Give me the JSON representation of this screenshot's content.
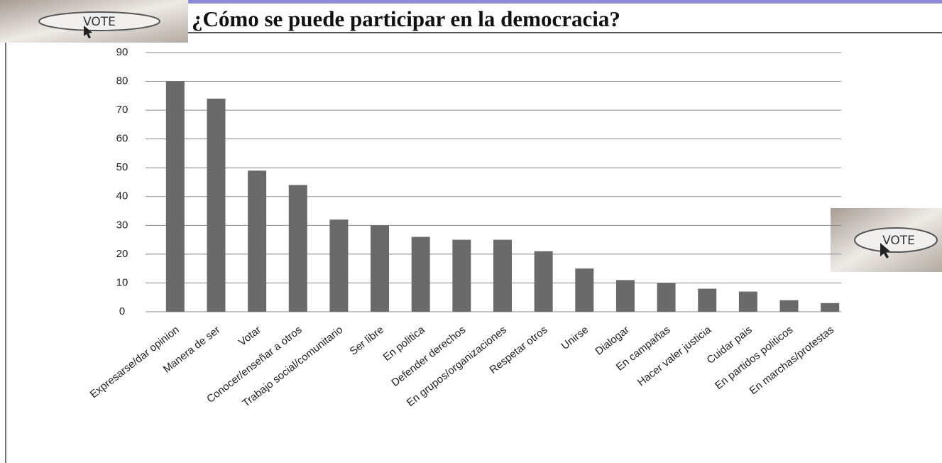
{
  "chart_data": {
    "type": "bar",
    "title": "¿Cómo se puede participar en la democracia?",
    "categories": [
      "Expresarse/dar opinion",
      "Manera de ser",
      "Votar",
      "Conocer/enseñar a otros",
      "Trabajo social/comunitario",
      "Ser libre",
      "En politica",
      "Defender derechos",
      "En grupos/organizaciones",
      "Respetar otros",
      "Unirse",
      "Dialogar",
      "En campañas",
      "Hacer valer justicia",
      "Cuidar pais",
      "En partidos politicos",
      "En marchas/protestas"
    ],
    "values": [
      80,
      74,
      49,
      44,
      32,
      30,
      26,
      25,
      25,
      21,
      15,
      11,
      10,
      8,
      7,
      4,
      3
    ],
    "color": "#6a6a6a",
    "ylim": [
      0,
      90
    ],
    "yticks": [
      0,
      10,
      20,
      30,
      40,
      50,
      60,
      70,
      80,
      90
    ],
    "grid": true
  },
  "badges": {
    "left": "VOTE",
    "right": "VOTE"
  }
}
